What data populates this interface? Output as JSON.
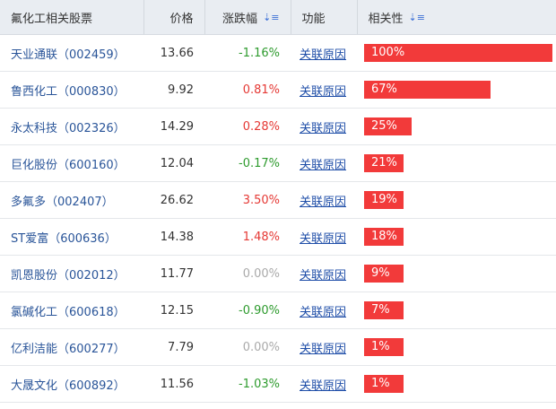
{
  "header": {
    "name": "氟化工相关股票",
    "price": "价格",
    "change": "涨跌幅",
    "func": "功能",
    "relevance": "相关性"
  },
  "colors": {
    "bar": "#f23a3a",
    "up": "#e53935",
    "down": "#2e9b2e",
    "flat": "#aaaaaa"
  },
  "rows": [
    {
      "name": "天业通联（002459）",
      "price": "13.66",
      "change": "-1.16%",
      "dir": "down",
      "func": "关联原因",
      "relevance": "100%",
      "rel_value": 1.0
    },
    {
      "name": "鲁西化工（000830）",
      "price": "9.92",
      "change": "0.81%",
      "dir": "up",
      "func": "关联原因",
      "relevance": "67%",
      "rel_value": 0.67
    },
    {
      "name": "永太科技（002326）",
      "price": "14.29",
      "change": "0.28%",
      "dir": "up",
      "func": "关联原因",
      "relevance": "25%",
      "rel_value": 0.25
    },
    {
      "name": "巨化股份（600160）",
      "price": "12.04",
      "change": "-0.17%",
      "dir": "down",
      "func": "关联原因",
      "relevance": "21%",
      "rel_value": 0.21
    },
    {
      "name": "多氟多（002407）",
      "price": "26.62",
      "change": "3.50%",
      "dir": "up",
      "func": "关联原因",
      "relevance": "19%",
      "rel_value": 0.19
    },
    {
      "name": "ST爱富（600636）",
      "price": "14.38",
      "change": "1.48%",
      "dir": "up",
      "func": "关联原因",
      "relevance": "18%",
      "rel_value": 0.18
    },
    {
      "name": "凯恩股份（002012）",
      "price": "11.77",
      "change": "0.00%",
      "dir": "flat",
      "func": "关联原因",
      "relevance": "9%",
      "rel_value": 0.09
    },
    {
      "name": "氯碱化工（600618）",
      "price": "12.15",
      "change": "-0.90%",
      "dir": "down",
      "func": "关联原因",
      "relevance": "7%",
      "rel_value": 0.07
    },
    {
      "name": "亿利洁能（600277）",
      "price": "7.79",
      "change": "0.00%",
      "dir": "flat",
      "func": "关联原因",
      "relevance": "1%",
      "rel_value": 0.01
    },
    {
      "name": "大晟文化（600892）",
      "price": "11.56",
      "change": "-1.03%",
      "dir": "down",
      "func": "关联原因",
      "relevance": "1%",
      "rel_value": 0.01
    }
  ]
}
